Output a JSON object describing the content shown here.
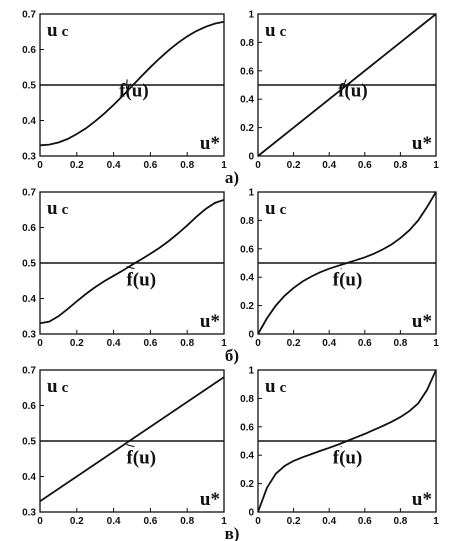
{
  "rows": [
    {
      "label": "а)"
    },
    {
      "label": "б)"
    },
    {
      "label": "в)"
    }
  ],
  "chart_data": [
    {
      "type": "line",
      "row": 0,
      "col": 0,
      "xlim": [
        0,
        1
      ],
      "ylim": [
        0.3,
        0.7
      ],
      "xticks": [
        "0",
        "0.2",
        "0.4",
        "0.6",
        "0.8",
        "1"
      ],
      "yticks": [
        "0.3",
        "0.4",
        "0.5",
        "0.6",
        "0.7"
      ],
      "ylabel": "u c",
      "xlabel": "u*",
      "curve_label": "f(u)",
      "series": [
        {
          "x": [
            0,
            0.05,
            0.1,
            0.15,
            0.2,
            0.25,
            0.3,
            0.35,
            0.4,
            0.45,
            0.5,
            0.55,
            0.6,
            0.65,
            0.7,
            0.75,
            0.8,
            0.85,
            0.9,
            0.95,
            1.0
          ],
          "values": [
            0.33,
            0.332,
            0.338,
            0.348,
            0.362,
            0.378,
            0.398,
            0.42,
            0.444,
            0.47,
            0.497,
            0.524,
            0.55,
            0.575,
            0.598,
            0.619,
            0.637,
            0.652,
            0.664,
            0.673,
            0.678
          ]
        },
        {
          "x": [
            0,
            1
          ],
          "values": [
            0.5,
            0.5
          ]
        }
      ]
    },
    {
      "type": "line",
      "row": 0,
      "col": 1,
      "xlim": [
        0,
        1
      ],
      "ylim": [
        0,
        1
      ],
      "xticks": [
        "0",
        "0.2",
        "0.4",
        "0.6",
        "0.8",
        "1"
      ],
      "yticks": [
        "0",
        "0.2",
        "0.4",
        "0.6",
        "0.8",
        "1"
      ],
      "ylabel": "u c",
      "xlabel": "u*",
      "curve_label": "f(u)",
      "series": [
        {
          "x": [
            0,
            1
          ],
          "values": [
            0,
            1
          ]
        },
        {
          "x": [
            0,
            1
          ],
          "values": [
            0.5,
            0.5
          ]
        }
      ]
    },
    {
      "type": "line",
      "row": 1,
      "col": 0,
      "xlim": [
        0,
        1
      ],
      "ylim": [
        0.3,
        0.7
      ],
      "xticks": [
        "0",
        "0.2",
        "0.4",
        "0.6",
        "0.8",
        "1"
      ],
      "yticks": [
        "0.3",
        "0.4",
        "0.5",
        "0.6",
        "0.7"
      ],
      "ylabel": "u c",
      "xlabel": "u*",
      "curve_label": "f(u)",
      "series": [
        {
          "x": [
            0,
            0.05,
            0.1,
            0.15,
            0.2,
            0.25,
            0.3,
            0.35,
            0.4,
            0.45,
            0.5,
            0.55,
            0.6,
            0.65,
            0.7,
            0.75,
            0.8,
            0.85,
            0.9,
            0.95,
            1.0
          ],
          "values": [
            0.33,
            0.335,
            0.35,
            0.37,
            0.392,
            0.413,
            0.432,
            0.449,
            0.464,
            0.479,
            0.495,
            0.51,
            0.526,
            0.543,
            0.562,
            0.583,
            0.606,
            0.63,
            0.652,
            0.669,
            0.678
          ]
        },
        {
          "x": [
            0,
            1
          ],
          "values": [
            0.5,
            0.5
          ]
        }
      ]
    },
    {
      "type": "line",
      "row": 1,
      "col": 1,
      "xlim": [
        0,
        1
      ],
      "ylim": [
        0,
        1
      ],
      "xticks": [
        "0",
        "0.2",
        "0.4",
        "0.6",
        "0.8",
        "1"
      ],
      "yticks": [
        "0",
        "0.2",
        "0.4",
        "0.6",
        "0.8",
        "1"
      ],
      "ylabel": "u c",
      "xlabel": "u*",
      "curve_label": "f(u)",
      "series": [
        {
          "x": [
            0,
            0.05,
            0.1,
            0.15,
            0.2,
            0.25,
            0.3,
            0.35,
            0.4,
            0.45,
            0.5,
            0.55,
            0.6,
            0.65,
            0.7,
            0.75,
            0.8,
            0.85,
            0.9,
            0.95,
            1.0
          ],
          "values": [
            0,
            0.11,
            0.2,
            0.27,
            0.325,
            0.37,
            0.405,
            0.435,
            0.46,
            0.48,
            0.5,
            0.52,
            0.54,
            0.565,
            0.595,
            0.63,
            0.675,
            0.73,
            0.8,
            0.895,
            1.0
          ]
        },
        {
          "x": [
            0,
            1
          ],
          "values": [
            0.5,
            0.5
          ]
        }
      ]
    },
    {
      "type": "line",
      "row": 2,
      "col": 0,
      "xlim": [
        0,
        1
      ],
      "ylim": [
        0.3,
        0.7
      ],
      "xticks": [
        "0",
        "0.2",
        "0.4",
        "0.6",
        "0.8",
        "1"
      ],
      "yticks": [
        "0.3",
        "0.4",
        "0.5",
        "0.6",
        "0.7"
      ],
      "ylabel": "u c",
      "xlabel": "u*",
      "curve_label": "f(u)",
      "series": [
        {
          "x": [
            0,
            1
          ],
          "values": [
            0.33,
            0.68
          ]
        },
        {
          "x": [
            0,
            1
          ],
          "values": [
            0.5,
            0.5
          ]
        }
      ]
    },
    {
      "type": "line",
      "row": 2,
      "col": 1,
      "xlim": [
        0,
        1
      ],
      "ylim": [
        0,
        1
      ],
      "xticks": [
        "0",
        "0.2",
        "0.4",
        "0.6",
        "0.8",
        "1"
      ],
      "yticks": [
        "0",
        "0.2",
        "0.4",
        "0.6",
        "0.8",
        "1"
      ],
      "ylabel": "u c",
      "xlabel": "u*",
      "curve_label": "f(u)",
      "series": [
        {
          "x": [
            0,
            0.05,
            0.1,
            0.15,
            0.2,
            0.25,
            0.3,
            0.35,
            0.4,
            0.45,
            0.5,
            0.55,
            0.6,
            0.65,
            0.7,
            0.75,
            0.8,
            0.85,
            0.9,
            0.95,
            1.0
          ],
          "values": [
            0,
            0.17,
            0.27,
            0.325,
            0.36,
            0.385,
            0.408,
            0.43,
            0.452,
            0.475,
            0.5,
            0.525,
            0.55,
            0.578,
            0.605,
            0.635,
            0.668,
            0.71,
            0.765,
            0.86,
            1.0
          ]
        },
        {
          "x": [
            0,
            1
          ],
          "values": [
            0.5,
            0.5
          ]
        }
      ]
    }
  ]
}
